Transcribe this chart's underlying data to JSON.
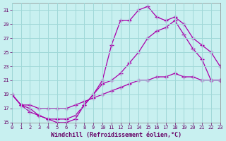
{
  "background_color": "#c8f0f0",
  "grid_color": "#a0d8d8",
  "line_color": "#aa00aa",
  "xlim": [
    0,
    23
  ],
  "ylim": [
    15,
    32
  ],
  "xlabel": "Windchill (Refroidissement éolien,°C)",
  "yticks": [
    15,
    17,
    19,
    21,
    23,
    25,
    27,
    29,
    31
  ],
  "xticks": [
    0,
    1,
    2,
    3,
    4,
    5,
    6,
    7,
    8,
    9,
    10,
    11,
    12,
    13,
    14,
    15,
    16,
    17,
    18,
    19,
    20,
    21,
    22,
    23
  ],
  "line1_x": [
    0,
    1,
    2,
    3,
    4,
    5,
    6,
    7,
    8,
    9,
    10,
    11,
    12,
    13,
    14,
    15,
    16,
    17,
    18,
    19,
    20,
    21,
    22,
    23
  ],
  "line1_y": [
    19,
    17.5,
    17,
    16,
    15.5,
    15,
    15,
    15.5,
    17.5,
    19,
    21,
    26,
    29.5,
    29.5,
    31,
    31.5,
    30,
    29.5,
    30,
    29,
    27,
    26,
    25,
    23
  ],
  "line2_x": [
    0,
    1,
    2,
    3,
    4,
    5,
    6,
    7,
    8,
    9,
    10,
    11,
    12,
    13,
    14,
    15,
    16,
    17,
    18,
    19,
    20,
    21,
    22,
    23
  ],
  "line2_y": [
    19,
    17.5,
    16.5,
    16,
    15.5,
    15.5,
    15.5,
    16,
    17.5,
    19,
    20.5,
    21,
    22,
    23.5,
    25,
    27,
    28,
    28.5,
    29.5,
    27.5,
    25.5,
    24,
    21,
    21
  ],
  "line3_x": [
    0,
    1,
    2,
    3,
    4,
    5,
    6,
    7,
    8,
    9,
    10,
    11,
    12,
    13,
    14,
    15,
    16,
    17,
    18,
    19,
    20,
    21,
    22,
    23
  ],
  "line3_y": [
    19,
    17.5,
    17.5,
    17,
    17,
    17,
    17,
    17.5,
    18,
    18.5,
    19,
    19.5,
    20,
    20.5,
    21,
    21,
    21.5,
    21.5,
    22,
    21.5,
    21.5,
    21,
    21,
    21
  ]
}
